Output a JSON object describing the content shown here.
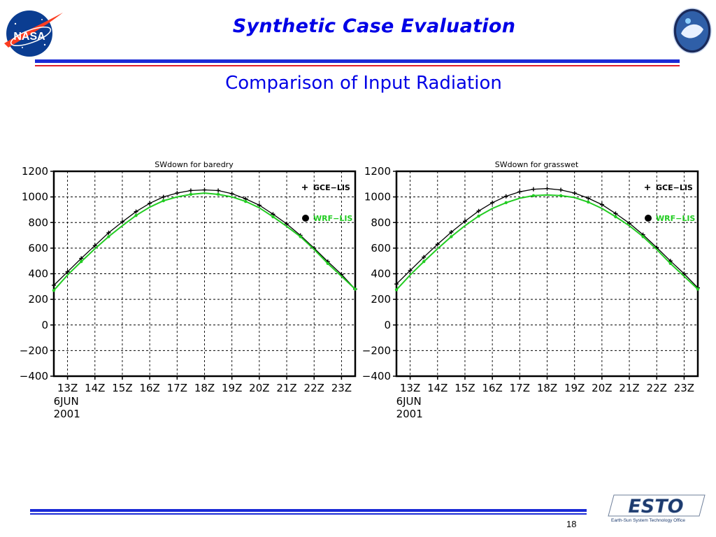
{
  "slide": {
    "title": "Synthetic Case Evaluation",
    "subtitle": "Comparison of Input Radiation",
    "page_number": "18",
    "logos": {
      "left": "nasa-logo",
      "right": "mission-emblem-logo",
      "bottom": "esto-logo",
      "nasa_text": "NASA",
      "esto_text": "ESTO",
      "esto_tagline": "Earth-Sun System Technology Office"
    },
    "colors": {
      "title": "#0000e6",
      "rule_blue": "#1b2bd6",
      "rule_red": "#e0202a",
      "series_gce": "#000000",
      "series_wrf": "#22cc22"
    }
  },
  "chart_data": [
    {
      "type": "line",
      "title": "SWdown for baredry",
      "ylim": [
        -400,
        1200
      ],
      "yticks": [
        1200,
        1000,
        800,
        600,
        400,
        200,
        0,
        -200,
        -400
      ],
      "ytick_labels": [
        "1200",
        "1000",
        "800",
        "600",
        "400",
        "200",
        "0",
        "−200",
        "−400"
      ],
      "xlim": [
        12.5,
        23.5
      ],
      "xticks": [
        13,
        14,
        15,
        16,
        17,
        18,
        19,
        20,
        21,
        22,
        23
      ],
      "xtick_labels": [
        "13Z",
        "14Z",
        "15Z",
        "16Z",
        "17Z",
        "18Z",
        "19Z",
        "20Z",
        "21Z",
        "22Z",
        "23Z"
      ],
      "x_date_labels": [
        "6JUN",
        "2001"
      ],
      "grid": true,
      "legend_position": "right",
      "x": [
        12.5,
        13,
        13.5,
        14,
        14.5,
        15,
        15.5,
        16,
        16.5,
        17,
        17.5,
        18,
        18.5,
        19,
        19.5,
        20,
        20.5,
        21,
        21.5,
        22,
        22.5,
        23,
        23.5
      ],
      "series": [
        {
          "name": "GCE−LIS",
          "marker": "plus",
          "color": "#000000",
          "values": [
            310,
            415,
            520,
            620,
            720,
            805,
            885,
            950,
            1000,
            1030,
            1050,
            1055,
            1050,
            1025,
            985,
            935,
            865,
            790,
            700,
            600,
            495,
            395,
            280
          ]
        },
        {
          "name": "WRF−LIS",
          "marker": "dot",
          "color": "#22cc22",
          "values": [
            270,
            390,
            495,
            595,
            690,
            775,
            855,
            920,
            970,
            1000,
            1020,
            1030,
            1020,
            1000,
            965,
            915,
            845,
            770,
            690,
            590,
            480,
            380,
            280
          ]
        }
      ]
    },
    {
      "type": "line",
      "title": "SWdown for grasswet",
      "ylim": [
        -400,
        1200
      ],
      "yticks": [
        1200,
        1000,
        800,
        600,
        400,
        200,
        0,
        -200,
        -400
      ],
      "ytick_labels": [
        "1200",
        "1000",
        "800",
        "600",
        "400",
        "200",
        "0",
        "−200",
        "−400"
      ],
      "xlim": [
        12.5,
        23.5
      ],
      "xticks": [
        13,
        14,
        15,
        16,
        17,
        18,
        19,
        20,
        21,
        22,
        23
      ],
      "xtick_labels": [
        "13Z",
        "14Z",
        "15Z",
        "16Z",
        "17Z",
        "18Z",
        "19Z",
        "20Z",
        "21Z",
        "22Z",
        "23Z"
      ],
      "x_date_labels": [
        "6JUN",
        "2001"
      ],
      "grid": true,
      "legend_position": "right",
      "x": [
        12.5,
        13,
        13.5,
        14,
        14.5,
        15,
        15.5,
        16,
        16.5,
        17,
        17.5,
        18,
        18.5,
        19,
        19.5,
        20,
        20.5,
        21,
        21.5,
        22,
        22.5,
        23,
        23.5
      ],
      "series": [
        {
          "name": "GCE−LIS",
          "marker": "plus",
          "color": "#000000",
          "values": [
            320,
            425,
            530,
            630,
            725,
            810,
            890,
            955,
            1005,
            1040,
            1060,
            1065,
            1055,
            1030,
            990,
            940,
            870,
            795,
            705,
            605,
            500,
            400,
            290
          ]
        },
        {
          "name": "WRF−LIS",
          "marker": "dot",
          "color": "#22cc22",
          "values": [
            275,
            390,
            495,
            595,
            690,
            775,
            850,
            910,
            955,
            990,
            1010,
            1015,
            1010,
            995,
            960,
            910,
            845,
            775,
            690,
            590,
            480,
            380,
            280
          ]
        }
      ]
    }
  ]
}
